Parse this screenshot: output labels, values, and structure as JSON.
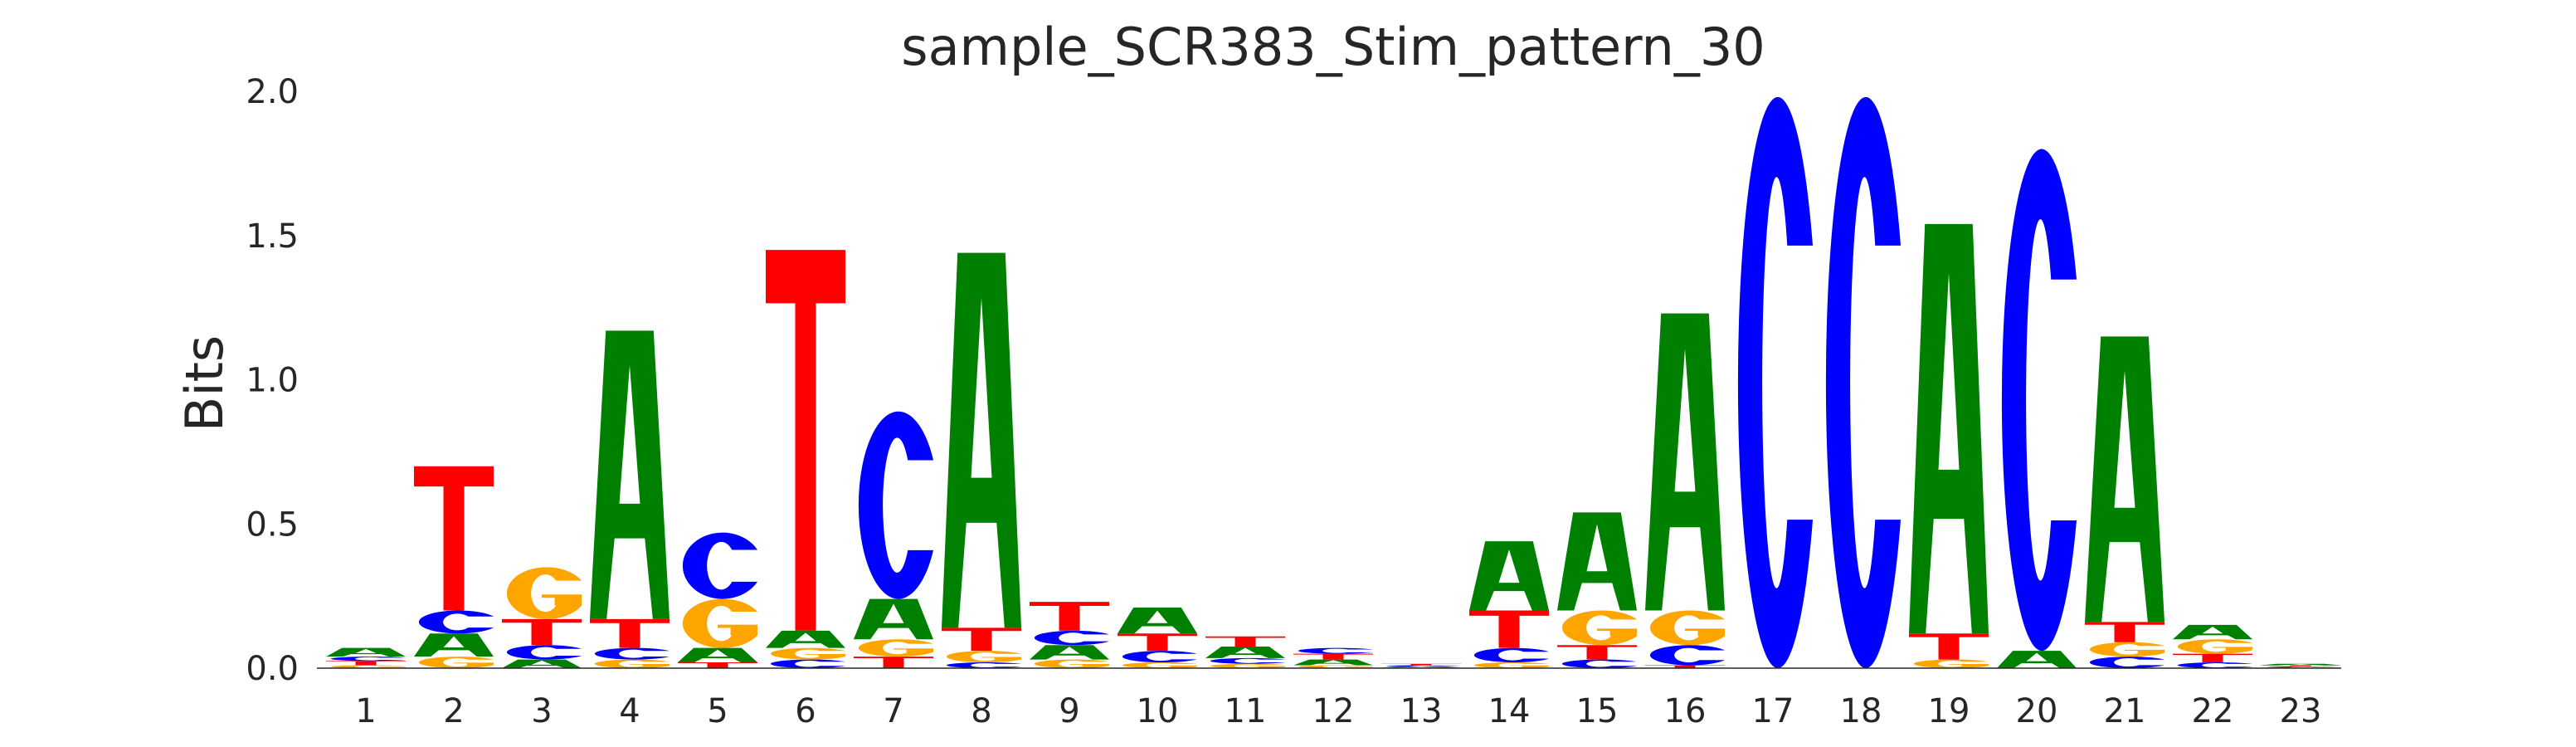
{
  "chart_data": {
    "type": "sequence-logo",
    "title": "sample_SCR383_Stim_pattern_30",
    "xlabel": "",
    "ylabel": "Bits",
    "ylim": [
      0,
      2.0
    ],
    "yticks": [
      0.0,
      0.5,
      1.0,
      1.5,
      2.0
    ],
    "ytick_labels": [
      "0.0",
      "0.5",
      "1.0",
      "1.5",
      "2.0"
    ],
    "grid": false,
    "letter_colors": {
      "A": "#008000",
      "C": "#0000ff",
      "G": "#ffa500",
      "T": "#ff0000"
    },
    "positions": [
      {
        "label": "1",
        "stack": [
          [
            "G",
            0.01
          ],
          [
            "T",
            0.015
          ],
          [
            "C",
            0.015
          ],
          [
            "A",
            0.03
          ]
        ]
      },
      {
        "label": "2",
        "stack": [
          [
            "G",
            0.04
          ],
          [
            "A",
            0.08
          ],
          [
            "C",
            0.08
          ],
          [
            "T",
            0.5
          ]
        ]
      },
      {
        "label": "3",
        "stack": [
          [
            "A",
            0.03
          ],
          [
            "C",
            0.05
          ],
          [
            "T",
            0.09
          ],
          [
            "G",
            0.18
          ]
        ]
      },
      {
        "label": "4",
        "stack": [
          [
            "G",
            0.03
          ],
          [
            "C",
            0.04
          ],
          [
            "T",
            0.1
          ],
          [
            "A",
            1.0
          ]
        ]
      },
      {
        "label": "5",
        "stack": [
          [
            "T",
            0.02
          ],
          [
            "A",
            0.05
          ],
          [
            "G",
            0.17
          ],
          [
            "C",
            0.23
          ]
        ]
      },
      {
        "label": "6",
        "stack": [
          [
            "C",
            0.03
          ],
          [
            "G",
            0.04
          ],
          [
            "A",
            0.06
          ],
          [
            "T",
            1.32
          ]
        ]
      },
      {
        "label": "7",
        "stack": [
          [
            "T",
            0.04
          ],
          [
            "G",
            0.06
          ],
          [
            "A",
            0.14
          ],
          [
            "C",
            0.65
          ]
        ]
      },
      {
        "label": "8",
        "stack": [
          [
            "C",
            0.02
          ],
          [
            "G",
            0.04
          ],
          [
            "T",
            0.08
          ],
          [
            "A",
            1.3
          ]
        ]
      },
      {
        "label": "9",
        "stack": [
          [
            "G",
            0.03
          ],
          [
            "A",
            0.05
          ],
          [
            "C",
            0.05
          ],
          [
            "T",
            0.1
          ]
        ]
      },
      {
        "label": "10",
        "stack": [
          [
            "G",
            0.02
          ],
          [
            "C",
            0.04
          ],
          [
            "T",
            0.06
          ],
          [
            "A",
            0.09
          ]
        ]
      },
      {
        "label": "11",
        "stack": [
          [
            "G",
            0.015
          ],
          [
            "C",
            0.02
          ],
          [
            "A",
            0.04
          ],
          [
            "T",
            0.035
          ]
        ]
      },
      {
        "label": "12",
        "stack": [
          [
            "G",
            0.01
          ],
          [
            "A",
            0.02
          ],
          [
            "T",
            0.02
          ],
          [
            "C",
            0.02
          ]
        ]
      },
      {
        "label": "13",
        "stack": [
          [
            "G",
            0.002
          ],
          [
            "A",
            0.004
          ],
          [
            "C",
            0.004
          ],
          [
            "T",
            0.005
          ]
        ]
      },
      {
        "label": "14",
        "stack": [
          [
            "G",
            0.02
          ],
          [
            "C",
            0.05
          ],
          [
            "T",
            0.13
          ],
          [
            "A",
            0.24
          ]
        ]
      },
      {
        "label": "15",
        "stack": [
          [
            "C",
            0.03
          ],
          [
            "T",
            0.05
          ],
          [
            "G",
            0.12
          ],
          [
            "A",
            0.34
          ]
        ]
      },
      {
        "label": "16",
        "stack": [
          [
            "T",
            0.01
          ],
          [
            "C",
            0.07
          ],
          [
            "G",
            0.12
          ],
          [
            "A",
            1.03
          ]
        ]
      },
      {
        "label": "17",
        "stack": [
          [
            "C",
            1.98
          ]
        ]
      },
      {
        "label": "18",
        "stack": [
          [
            "C",
            1.98
          ]
        ]
      },
      {
        "label": "19",
        "stack": [
          [
            "G",
            0.03
          ],
          [
            "T",
            0.09
          ],
          [
            "A",
            1.42
          ]
        ]
      },
      {
        "label": "20",
        "stack": [
          [
            "A",
            0.06
          ],
          [
            "C",
            1.74
          ]
        ]
      },
      {
        "label": "21",
        "stack": [
          [
            "C",
            0.04
          ],
          [
            "G",
            0.05
          ],
          [
            "T",
            0.07
          ],
          [
            "A",
            0.99
          ]
        ]
      },
      {
        "label": "22",
        "stack": [
          [
            "C",
            0.02
          ],
          [
            "T",
            0.03
          ],
          [
            "G",
            0.05
          ],
          [
            "A",
            0.05
          ]
        ]
      },
      {
        "label": "23",
        "stack": [
          [
            "G",
            0.003
          ],
          [
            "C",
            0.003
          ],
          [
            "T",
            0.004
          ],
          [
            "A",
            0.005
          ]
        ]
      }
    ]
  }
}
